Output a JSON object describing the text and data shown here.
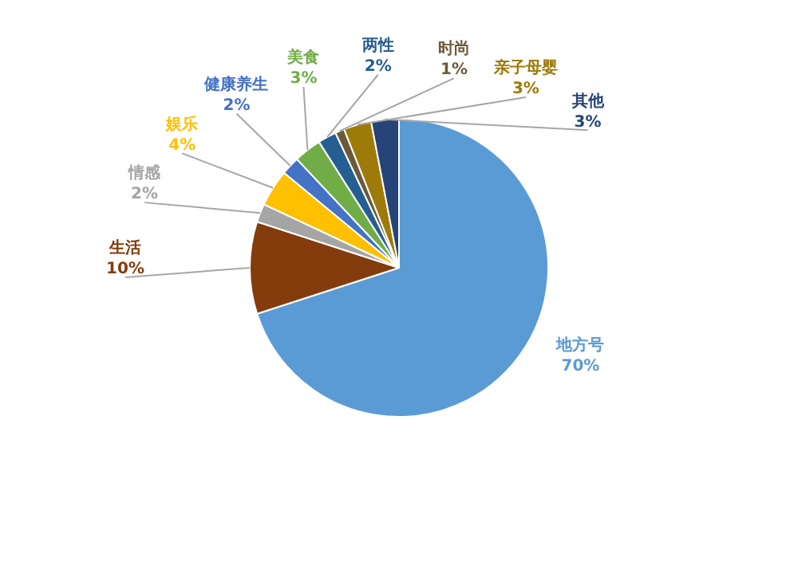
{
  "chart_data": {
    "type": "pie",
    "categories": [
      "地方号",
      "生活",
      "情感",
      "娱乐",
      "健康养生",
      "美食",
      "两性",
      "时尚",
      "亲子母婴",
      "其他"
    ],
    "values": [
      70,
      10,
      2,
      4,
      2,
      3,
      2,
      1,
      3,
      3
    ],
    "value_labels": [
      "70%",
      "10%",
      "2%",
      "4%",
      "2%",
      "3%",
      "2%",
      "1%",
      "3%",
      "3%"
    ],
    "colors": [
      "#5b9bd5",
      "#843c0c",
      "#a5a5a5",
      "#ffc000",
      "#4472c4",
      "#70ad47",
      "#255e91",
      "#6b5a3a",
      "#9e7b09",
      "#264478"
    ],
    "legend": false
  }
}
